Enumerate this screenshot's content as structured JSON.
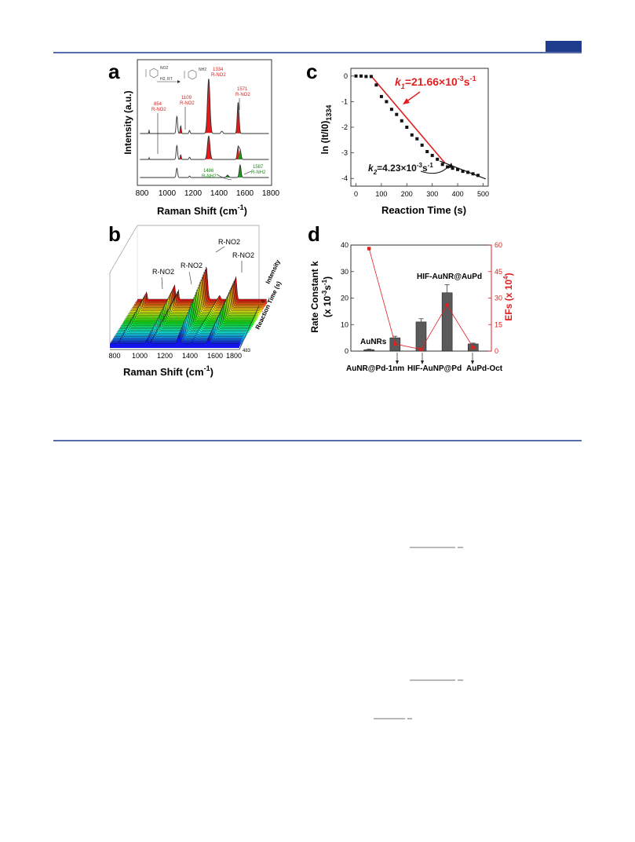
{
  "panels": {
    "a": {
      "letter": "a",
      "reaction": {
        "reagent": "NO2",
        "product": "NH2",
        "conditions": "H2, RT"
      },
      "peaks": [
        {
          "label": "854",
          "group": "R-NO2"
        },
        {
          "label": "1109",
          "group": "R-NO2"
        },
        {
          "label": "1334",
          "group": "R-NO2"
        },
        {
          "label": "1571",
          "group": "R-NO2"
        },
        {
          "label": "1486",
          "group": "R-NH2"
        },
        {
          "label": "1587",
          "group": "R-NH2"
        }
      ],
      "ylabel": "Intensity (a.u.)",
      "xlabel": "Raman Shift (cm",
      "xlabel_sup": "-1",
      "xlabel_end": ")",
      "xticks": [
        "800",
        "1000",
        "1200",
        "1400",
        "1600",
        "1800"
      ]
    },
    "b": {
      "letter": "b",
      "peak_labels": [
        "R-NO2",
        "R-NO2",
        "R-NO2",
        "R-NO2"
      ],
      "xlabel": "Raman Shift (cm",
      "xlabel_sup": "-1",
      "xlabel_end": ")",
      "xticks": [
        "800",
        "1000",
        "1200",
        "1400",
        "1600",
        "1800"
      ],
      "zlabel": "Intensity",
      "ylabel": "Reaction Time (s)",
      "time_ticks": [
        "0",
        "483"
      ]
    },
    "c": {
      "letter": "c",
      "ylabel": "ln (It/I0)",
      "ylabel_sub": "1334",
      "xlabel": "Reaction Time (s)",
      "xticks": [
        "0",
        "100",
        "200",
        "300",
        "400",
        "500"
      ],
      "yticks": [
        "0",
        "-1",
        "-2",
        "-3",
        "-4"
      ],
      "k1": {
        "symbol": "k",
        "sub": "1",
        "value": "=21.66×10",
        "exp": "-3",
        "unit": "s",
        "unit_exp": "-1"
      },
      "k2": {
        "symbol": "k",
        "sub": "2",
        "value": "=4.23×10",
        "exp": "-3",
        "unit": "s",
        "unit_exp": "-1"
      }
    },
    "d": {
      "letter": "d",
      "ylabel_left": "Rate Constant k",
      "ylabel_left2": "(x 10",
      "ylabel_left2_sup": "-3",
      "ylabel_left2_unit": "s",
      "ylabel_left2_unit_sup": "-1",
      "ylabel_left2_end": ")",
      "ylabel_right": "EFs (x 10",
      "ylabel_right_sup": "4",
      "ylabel_right_end": ")",
      "yticks_left": [
        "0",
        "10",
        "20",
        "30",
        "40"
      ],
      "yticks_right": [
        "0",
        "15",
        "30",
        "45",
        "60"
      ],
      "top_labels": [
        "AuNRs",
        "HIF-AuNR@AuPd"
      ],
      "bottom_labels": [
        "AuNR@Pd-1nm",
        "HIF-AuNP@Pd",
        "AuPd-Oct"
      ]
    }
  },
  "chart_data": [
    {
      "type": "line",
      "panel": "c",
      "xlabel": "Reaction Time (s)",
      "ylabel": "ln (It/I0)1334",
      "xlim": [
        -20,
        520
      ],
      "ylim": [
        -4.3,
        0.3
      ],
      "series": [
        {
          "x": [
            0,
            20,
            40,
            60,
            80,
            100,
            120,
            140,
            160,
            180,
            200,
            220,
            240,
            260,
            280,
            300,
            320,
            340,
            360,
            380,
            400,
            420,
            440,
            460,
            480
          ],
          "y": [
            0,
            0,
            -0.02,
            -0.02,
            -0.35,
            -0.8,
            -1.0,
            -1.3,
            -1.5,
            -1.75,
            -2.0,
            -2.3,
            -2.45,
            -2.7,
            -2.95,
            -3.1,
            -3.25,
            -3.45,
            -3.55,
            -3.6,
            -3.65,
            -3.72,
            -3.76,
            -3.82,
            -3.88
          ]
        }
      ],
      "fits": [
        {
          "x": [
            60,
            350
          ],
          "y": [
            0,
            -3.4
          ]
        },
        {
          "x": [
            330,
            510
          ],
          "y": [
            -3.32,
            -4.02
          ]
        }
      ]
    },
    {
      "type": "bar",
      "panel": "d",
      "categories": [
        "AuNRs",
        "AuNR@Pd-1nm",
        "HIF-AuNP@Pd",
        "HIF-AuNR@AuPd",
        "AuPd-Oct"
      ],
      "values": [
        0.5,
        5.0,
        11.0,
        22.0,
        2.7
      ],
      "errors": [
        0.3,
        0.6,
        1.2,
        3.0,
        0.3
      ],
      "ylim": [
        0,
        40
      ],
      "series_right": {
        "values": [
          58,
          4,
          1,
          26,
          2
        ],
        "ylim": [
          0,
          60
        ]
      }
    }
  ]
}
